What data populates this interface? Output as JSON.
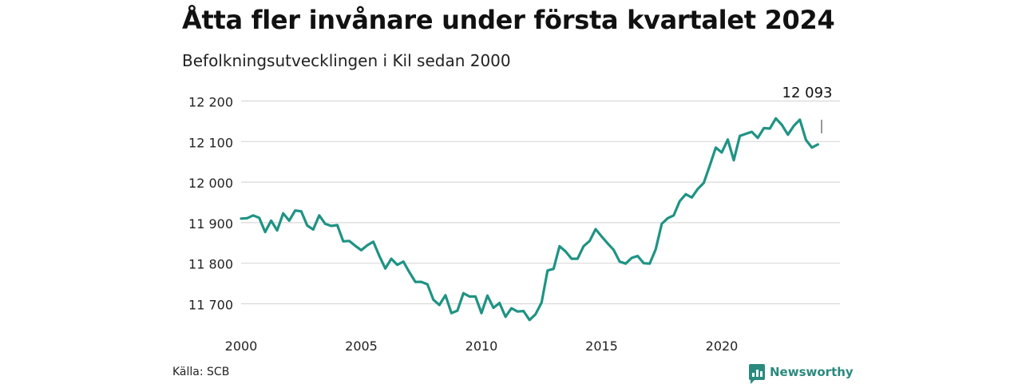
{
  "title": "Åtta fler invånare under första kvartalet 2024",
  "subtitle": "Befolkningsutvecklingen i Kil sedan 2000",
  "source": "Källa: SCB",
  "brand": "Newsworthy",
  "colors": {
    "line": "#1f9384",
    "grid": "#d9d9d9",
    "brand": "#2b8a7e"
  },
  "chart_data": {
    "type": "line",
    "title": "Åtta fler invånare under första kvartalet 2024",
    "subtitle": "Befolkningsutvecklingen i Kil sedan 2000",
    "xlabel": "",
    "ylabel": "",
    "x_ticks": [
      "2000",
      "2005",
      "2010",
      "2015",
      "2020"
    ],
    "y_ticks": [
      "11 700",
      "11 800",
      "11 900",
      "12 000",
      "12 100",
      "12 200"
    ],
    "ylim": [
      11660,
      12200
    ],
    "xlim": [
      2000,
      2024.75
    ],
    "grid": true,
    "annotation": {
      "label": "12 093",
      "x": 2024.0,
      "y": 12093
    },
    "series": [
      {
        "frequency": "quarterly",
        "start": "2000 Q1",
        "values": [
          11910,
          11911,
          11918,
          11912,
          11877,
          11905,
          11881,
          11923,
          11905,
          11930,
          11928,
          11893,
          11883,
          11918,
          11897,
          11892,
          11894,
          11854,
          11855,
          11843,
          11832,
          11844,
          11853,
          11818,
          11787,
          11811,
          11796,
          11804,
          11778,
          11754,
          11754,
          11748,
          11710,
          11697,
          11721,
          11677,
          11683,
          11726,
          11718,
          11718,
          11677,
          11720,
          11690,
          11702,
          11668,
          11689,
          11681,
          11682,
          11660,
          11674,
          11703,
          11782,
          11786,
          11842,
          11829,
          11811,
          11811,
          11842,
          11855,
          11884,
          11866,
          11849,
          11833,
          11804,
          11799,
          11813,
          11818,
          11800,
          11799,
          11834,
          11897,
          11911,
          11918,
          11953,
          11970,
          11962,
          11983,
          11998,
          12041,
          12085,
          12073,
          12105,
          12054,
          12114,
          12119,
          12124,
          12109,
          12133,
          12132,
          12157,
          12141,
          12117,
          12139,
          12154,
          12104,
          12085,
          12093
        ]
      }
    ]
  }
}
